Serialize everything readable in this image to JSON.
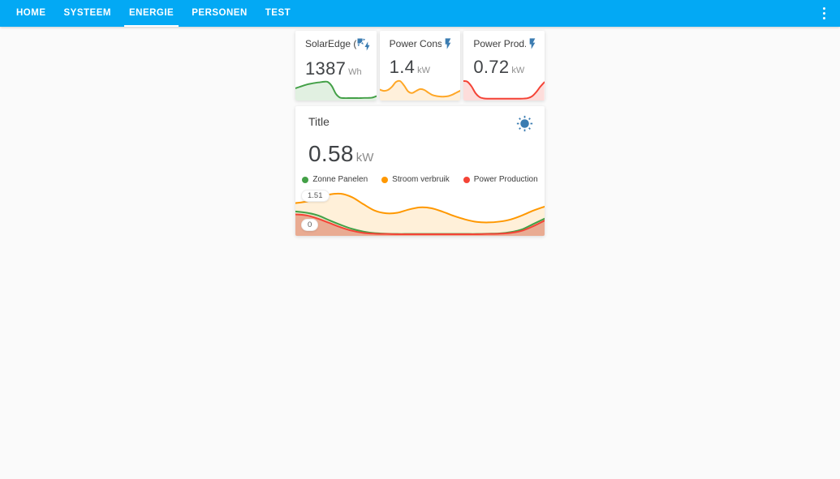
{
  "theme": {
    "navbar_bg": "#03a9f4",
    "page_bg": "#fafafa",
    "icon_color": "#3b7cb1",
    "green": "#43a047",
    "orange": "#ff9800",
    "red": "#f44336"
  },
  "navbar": {
    "tabs": [
      {
        "label": "HOME",
        "active": false
      },
      {
        "label": "SYSTEEM",
        "active": false
      },
      {
        "label": "ENERGIE",
        "active": true
      },
      {
        "label": "PERSONEN",
        "active": false
      },
      {
        "label": "TEST",
        "active": false
      }
    ],
    "menu_icon": "dots-vertical-icon"
  },
  "sensor_cards": [
    {
      "name": "SolarEdge (...",
      "value": "1387",
      "unit": "Wh",
      "icon": "solar-power-icon"
    },
    {
      "name": "Power Cons...",
      "value": "1.4",
      "unit": "kW",
      "icon": "flash-icon"
    },
    {
      "name": "Power Prod...",
      "value": "0.72",
      "unit": "kW",
      "icon": "flash-icon"
    }
  ],
  "main_card": {
    "title": "Title",
    "icon": "sun-icon",
    "value": "0.58",
    "unit": "kW",
    "y_max_label": "1.51",
    "y_min_label": "0",
    "legend": [
      {
        "label": "Zonne Panelen",
        "color": "#43a047"
      },
      {
        "label": "Stroom verbruik",
        "color": "#ff9800"
      },
      {
        "label": "Power Production",
        "color": "#f44336"
      }
    ]
  },
  "chart_data": [
    {
      "type": "area",
      "name": "solaredge-sparkline",
      "normalized": true,
      "color": "#43a047",
      "fill": "rgba(67,160,71,0.16)",
      "values": [
        0.62,
        0.7,
        0.78,
        0.85,
        0.9,
        0.94,
        0.97,
        1.0,
        0.99,
        0.75,
        0.3,
        0.08,
        0.05,
        0.05,
        0.05,
        0.05,
        0.05,
        0.06,
        0.06,
        0.08,
        0.16
      ]
    },
    {
      "type": "area",
      "name": "power-consumption-sparkline",
      "normalized": true,
      "color": "#ffa726",
      "fill": "rgba(255,152,0,0.14)",
      "values": [
        0.52,
        0.45,
        0.5,
        0.68,
        0.95,
        1.0,
        0.75,
        0.42,
        0.33,
        0.45,
        0.55,
        0.5,
        0.35,
        0.22,
        0.16,
        0.13,
        0.13,
        0.16,
        0.24,
        0.36,
        0.47
      ]
    },
    {
      "type": "area",
      "name": "power-production-sparkline",
      "normalized": true,
      "color": "#f44336",
      "fill": "rgba(244,67,54,0.18)",
      "values": [
        1.0,
        0.96,
        0.7,
        0.32,
        0.1,
        0.03,
        0.01,
        0.01,
        0.01,
        0.01,
        0.01,
        0.01,
        0.01,
        0.01,
        0.01,
        0.02,
        0.05,
        0.15,
        0.38,
        0.68,
        0.93
      ]
    },
    {
      "type": "area",
      "name": "energy-overview",
      "unit": "kW",
      "ylim": [
        0,
        1.51
      ],
      "pad_top": 8,
      "pad_bottom": 2,
      "render_order": [
        1,
        0,
        2
      ],
      "series": [
        {
          "name": "Zonne Panelen",
          "color": "#43a047",
          "fill": "rgba(67,160,71,0.15)",
          "values": [
            0.85,
            0.8,
            0.7,
            0.52,
            0.35,
            0.2,
            0.1,
            0.04,
            0.02,
            0.01,
            0.01,
            0.01,
            0.01,
            0.01,
            0.01,
            0.01,
            0.01,
            0.02,
            0.03,
            0.08,
            0.18,
            0.38,
            0.58
          ]
        },
        {
          "name": "Stroom verbruik",
          "color": "#ff9800",
          "fill": "rgba(255,152,0,0.15)",
          "values": [
            1.16,
            1.22,
            1.35,
            1.48,
            1.51,
            1.38,
            1.12,
            0.88,
            0.78,
            0.8,
            0.92,
            1.0,
            0.97,
            0.84,
            0.68,
            0.55,
            0.46,
            0.44,
            0.47,
            0.55,
            0.7,
            0.88,
            1.03
          ]
        },
        {
          "name": "Power Production",
          "color": "#f44336",
          "fill": "rgba(244,67,54,0.35)",
          "values": [
            0.74,
            0.7,
            0.58,
            0.42,
            0.26,
            0.13,
            0.05,
            0.02,
            0.01,
            0.0,
            0.0,
            0.0,
            0.0,
            0.0,
            0.0,
            0.0,
            0.0,
            0.01,
            0.02,
            0.05,
            0.13,
            0.3,
            0.51
          ]
        }
      ]
    }
  ]
}
